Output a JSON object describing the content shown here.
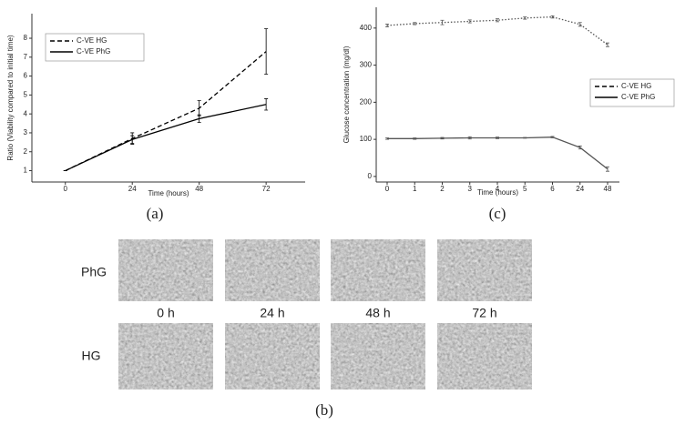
{
  "chart_data": [
    {
      "type": "line",
      "label": "(a)",
      "x_label": "Time (hours)",
      "y_label": "Ratio (Viability compared to initial time)",
      "x": [
        0,
        24,
        48,
        72
      ],
      "xlim": [
        -12,
        86
      ],
      "xticks": [
        0,
        24,
        48,
        72
      ],
      "ylim": [
        0.4,
        9.3
      ],
      "yticks": [
        1,
        2,
        3,
        4,
        5,
        6,
        7,
        8
      ],
      "legend": "upper left",
      "series": [
        {
          "name": "C-VE HG",
          "color": "#000000",
          "dash": "dashed",
          "values": [
            1,
            2.7,
            4.3,
            7.3
          ],
          "errors": [
            0,
            0.3,
            0.4,
            1.2
          ]
        },
        {
          "name": "C-VE PhG",
          "color": "#000000",
          "dash": "solid",
          "values": [
            1,
            2.65,
            3.75,
            4.5
          ],
          "errors": [
            0,
            0.2,
            0.2,
            0.3
          ]
        }
      ]
    },
    {
      "type": "line",
      "label": "(c)",
      "x_label": "Time (hours)",
      "y_label": "Glucose concentration (mg/dl)",
      "categories": [
        "0",
        "1",
        "2",
        "3",
        "4",
        "5",
        "6",
        "24",
        "48"
      ],
      "ylim": [
        -15,
        456
      ],
      "yticks": [
        0,
        100,
        200,
        300,
        400
      ],
      "legend": "right",
      "series": [
        {
          "name": "C-VE HG",
          "color": "#555555",
          "dash": "dotted",
          "legend_dash": "dashed",
          "values": [
            407,
            412,
            415,
            418,
            421,
            427,
            430,
            410,
            355
          ],
          "errors": [
            4,
            3,
            6,
            4,
            4,
            3,
            3,
            5,
            5
          ]
        },
        {
          "name": "C-VE PhG",
          "color": "#555555",
          "dash": "solid",
          "values": [
            102,
            102,
            103,
            104,
            104,
            104,
            106,
            78,
            20
          ],
          "errors": [
            2,
            2,
            2,
            3,
            2,
            1,
            2,
            4,
            6
          ]
        }
      ]
    }
  ],
  "image_panel": {
    "label": "(b)",
    "rows": [
      "PhG",
      "HG"
    ],
    "times": [
      "0 h",
      "24 h",
      "48 h",
      "72 h"
    ]
  }
}
